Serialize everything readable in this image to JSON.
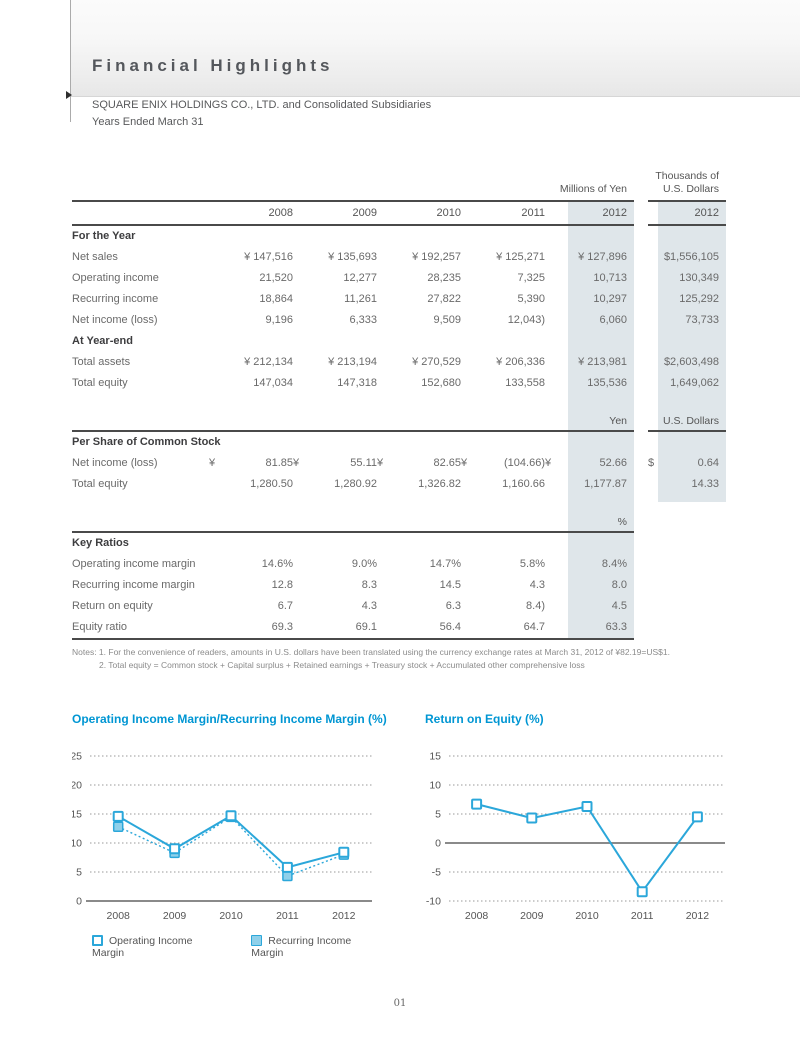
{
  "header": {
    "title": "Financial Highlights",
    "subtitle1": "SQUARE ENIX HOLDINGS CO., LTD. and Consolidated Subsidiaries",
    "subtitle2": "Years Ended March 31"
  },
  "table": {
    "units_top": {
      "yen": "Millions of Yen",
      "usd_line1": "Thousands of",
      "usd_line2": "U.S. Dollars"
    },
    "years": [
      "2008",
      "2009",
      "2010",
      "2011",
      "2012",
      "2012"
    ],
    "groups": [
      {
        "unit_row": null,
        "title": "For the Year",
        "rows": [
          {
            "label": "Net sales",
            "cells": [
              {
                "s": "",
                "v": "¥ 147,516"
              },
              {
                "s": "",
                "v": "¥ 135,693"
              },
              {
                "s": "",
                "v": "¥ 192,257"
              },
              {
                "s": "",
                "v": "¥ 125,271"
              },
              {
                "s": "",
                "v": "¥ 127,896"
              },
              {
                "s": "",
                "v": "$1,556,105"
              }
            ]
          },
          {
            "label": "Operating income",
            "cells": [
              {
                "s": "",
                "v": "21,520"
              },
              {
                "s": "",
                "v": "12,277"
              },
              {
                "s": "",
                "v": "28,235"
              },
              {
                "s": "",
                "v": "7,325"
              },
              {
                "s": "",
                "v": "10,713"
              },
              {
                "s": "",
                "v": "130,349"
              }
            ]
          },
          {
            "label": "Recurring income",
            "cells": [
              {
                "s": "",
                "v": "18,864"
              },
              {
                "s": "",
                "v": "11,261"
              },
              {
                "s": "",
                "v": "27,822"
              },
              {
                "s": "",
                "v": "5,390"
              },
              {
                "s": "",
                "v": "10,297"
              },
              {
                "s": "",
                "v": "125,292"
              }
            ]
          },
          {
            "label": "Net income (loss)",
            "cells": [
              {
                "s": "",
                "v": "9,196"
              },
              {
                "s": "",
                "v": "6,333"
              },
              {
                "s": "",
                "v": "9,509"
              },
              {
                "s": "",
                "v": "12,043)"
              },
              {
                "s": "",
                "v": "6,060"
              },
              {
                "s": "",
                "v": "73,733"
              }
            ]
          }
        ]
      },
      {
        "unit_row": null,
        "title": "At Year-end",
        "rows": [
          {
            "label": "Total assets",
            "cells": [
              {
                "s": "",
                "v": "¥ 212,134"
              },
              {
                "s": "",
                "v": "¥ 213,194"
              },
              {
                "s": "",
                "v": "¥ 270,529"
              },
              {
                "s": "",
                "v": "¥ 206,336"
              },
              {
                "s": "",
                "v": "¥ 213,981"
              },
              {
                "s": "",
                "v": "$2,603,498"
              }
            ]
          },
          {
            "label": "Total equity",
            "cells": [
              {
                "s": "",
                "v": "147,034"
              },
              {
                "s": "",
                "v": "147,318"
              },
              {
                "s": "",
                "v": "152,680"
              },
              {
                "s": "",
                "v": "133,558"
              },
              {
                "s": "",
                "v": "135,536"
              },
              {
                "s": "",
                "v": "1,649,062"
              }
            ]
          }
        ]
      },
      {
        "unit_row": {
          "yen": "Yen",
          "usd": "U.S. Dollars",
          "rule_usd": true
        },
        "title": "Per Share of Common Stock",
        "rows": [
          {
            "label": "Net income (loss)",
            "cells": [
              {
                "s": "¥",
                "v": "81.85"
              },
              {
                "s": "¥",
                "v": "55.11"
              },
              {
                "s": "¥",
                "v": "82.65"
              },
              {
                "s": "¥",
                "v": "(104.66)"
              },
              {
                "s": "¥",
                "v": "52.66"
              },
              {
                "s": "$",
                "v": "0.64"
              }
            ]
          },
          {
            "label": "Total equity",
            "cells": [
              {
                "s": "",
                "v": "1,280.50"
              },
              {
                "s": "",
                "v": "1,280.92"
              },
              {
                "s": "",
                "v": "1,326.82"
              },
              {
                "s": "",
                "v": "1,160.66"
              },
              {
                "s": "",
                "v": "1,177.87"
              },
              {
                "s": "",
                "v": "14.33"
              }
            ]
          }
        ]
      },
      {
        "unit_row": {
          "yen": "%",
          "usd": "",
          "rule_usd": false
        },
        "title": "Key Ratios",
        "rows": [
          {
            "label": "Operating income margin",
            "cells": [
              {
                "s": "",
                "v": "14.6%"
              },
              {
                "s": "",
                "v": "9.0%"
              },
              {
                "s": "",
                "v": "14.7%"
              },
              {
                "s": "",
                "v": "5.8%"
              },
              {
                "s": "",
                "v": "8.4%"
              },
              {
                "s": "",
                "v": ""
              }
            ]
          },
          {
            "label": "Recurring income margin",
            "cells": [
              {
                "s": "",
                "v": "12.8"
              },
              {
                "s": "",
                "v": "8.3"
              },
              {
                "s": "",
                "v": "14.5"
              },
              {
                "s": "",
                "v": "4.3"
              },
              {
                "s": "",
                "v": "8.0"
              },
              {
                "s": "",
                "v": ""
              }
            ]
          },
          {
            "label": "Return on equity",
            "cells": [
              {
                "s": "",
                "v": "6.7"
              },
              {
                "s": "",
                "v": "4.3"
              },
              {
                "s": "",
                "v": "6.3"
              },
              {
                "s": "",
                "v": "8.4)"
              },
              {
                "s": "",
                "v": "4.5"
              },
              {
                "s": "",
                "v": ""
              }
            ]
          },
          {
            "label": "Equity ratio",
            "cells": [
              {
                "s": "",
                "v": "69.3"
              },
              {
                "s": "",
                "v": "69.1"
              },
              {
                "s": "",
                "v": "56.4"
              },
              {
                "s": "",
                "v": "64.7"
              },
              {
                "s": "",
                "v": "63.3"
              },
              {
                "s": "",
                "v": ""
              }
            ]
          }
        ]
      }
    ],
    "notes": {
      "line1": "Notes: 1. For the convenience of readers, amounts in U.S. dollars have been translated using the currency exchange rates at March 31, 2012 of ¥82.19=US$1.",
      "line2": "2. Total equity = Common stock + Capital surplus + Retained earnings + Treasury stock + Accumulated other comprehensive loss"
    }
  },
  "chart_data": [
    {
      "type": "line",
      "title": "Operating Income Margin/Recurring Income Margin (%)",
      "categories": [
        "2008",
        "2009",
        "2010",
        "2011",
        "2012"
      ],
      "series": [
        {
          "name": "Operating Income Margin",
          "values": [
            14.6,
            9.0,
            14.7,
            5.8,
            8.4
          ],
          "marker": "open",
          "line": "solid"
        },
        {
          "name": "Recurring Income Margin",
          "values": [
            12.8,
            8.3,
            14.5,
            4.3,
            8.0
          ],
          "marker": "filled",
          "line": "dotted"
        }
      ],
      "ylim": [
        0,
        25
      ],
      "yticks": [
        25,
        20,
        15,
        10,
        5,
        0
      ],
      "zero_line": 0,
      "grid": "dotted",
      "legend_position": "bottom",
      "gx0": 18
    },
    {
      "type": "line",
      "title": "Return on Equity (%)",
      "categories": [
        "2008",
        "2009",
        "2010",
        "2011",
        "2012"
      ],
      "series": [
        {
          "name": "Return on Equity",
          "values": [
            6.7,
            4.3,
            6.3,
            -8.4,
            4.5
          ],
          "marker": "open",
          "line": "solid"
        }
      ],
      "ylim": [
        -10,
        15
      ],
      "yticks": [
        15,
        10,
        5,
        0,
        -5,
        -10
      ],
      "zero_line": 0,
      "grid": "dotted",
      "legend_position": "none",
      "gx0": 24
    }
  ],
  "colors": {
    "accent_blue": "#0096d3",
    "line_blue": "#2ba7da",
    "marker_fill_blue": "#8fd0ea",
    "column_shade": "#dfe6ea",
    "rule_gray": "#4a4a4a"
  },
  "footer": {
    "page_number": "01"
  }
}
